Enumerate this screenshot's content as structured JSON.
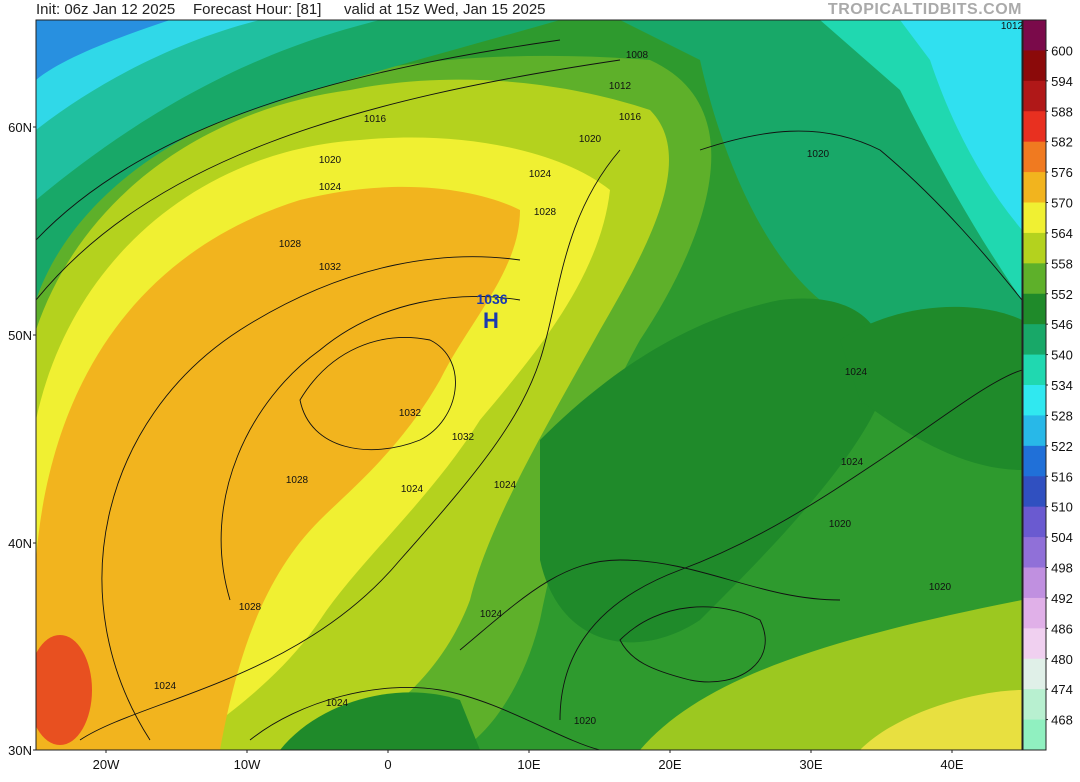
{
  "header": {
    "init": "Init: 06z Jan 12 2025",
    "forecast_hour": "Forecast Hour: [81]",
    "valid": "valid at 15z Wed, Jan 15 2025",
    "source": "TROPICALTIDBITS.COM"
  },
  "map": {
    "lat_labels": [
      "60N",
      "50N",
      "40N",
      "30N"
    ],
    "lon_labels": [
      "20W",
      "10W",
      "0",
      "10E",
      "20E",
      "30E",
      "40E"
    ],
    "pressure_labels": [
      "1036",
      "H",
      "1032",
      "1032",
      "1028",
      "1028",
      "1028",
      "1024",
      "1024",
      "1024",
      "1020",
      "1016",
      "1012",
      "1008",
      "1028",
      "1024",
      "1024",
      "1024",
      "1020",
      "1020",
      "1020",
      "1024",
      "1024",
      "1020",
      "1012",
      "1016",
      "1020",
      "1024",
      "1032"
    ]
  },
  "colorbar": {
    "levels": [
      600,
      594,
      588,
      582,
      576,
      570,
      564,
      558,
      552,
      546,
      540,
      534,
      528,
      522,
      516,
      510,
      504,
      498,
      492,
      486,
      480,
      474,
      468
    ],
    "colors": [
      "#7a0a4a",
      "#8b0a0a",
      "#b01818",
      "#e83020",
      "#f07a20",
      "#f2b41e",
      "#f0f032",
      "#b4d21e",
      "#5eb02a",
      "#1f8a2a",
      "#18a868",
      "#20d8b0",
      "#30e8f0",
      "#28b8e8",
      "#2070d8",
      "#3050c0",
      "#6a5ad0",
      "#9070d8",
      "#c090e0",
      "#e0b0e8",
      "#f0d0f0",
      "#e0f0e8",
      "#b8f0d0",
      "#90f0c0"
    ]
  }
}
